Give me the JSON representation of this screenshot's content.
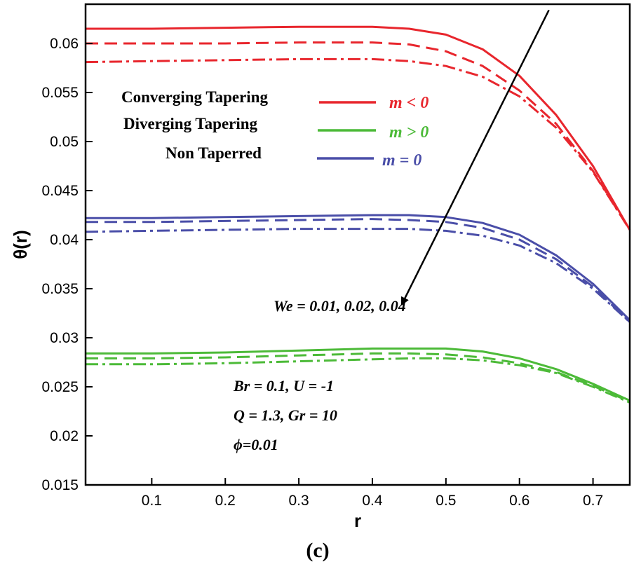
{
  "chart_data": {
    "type": "line",
    "xlabel": "r",
    "ylabel": "θ(r)",
    "xlim": [
      0.01,
      0.75
    ],
    "ylim": [
      0.015,
      0.064
    ],
    "xticks": [
      0.1,
      0.2,
      0.3,
      0.4,
      0.5,
      0.6,
      0.7
    ],
    "xtick_labels": [
      "0.1",
      "0.2",
      "0.3",
      "0.4",
      "0.5",
      "0.6",
      "0.7"
    ],
    "yticks": [
      0.015,
      0.02,
      0.025,
      0.03,
      0.035,
      0.04,
      0.045,
      0.05,
      0.055,
      0.06
    ],
    "ytick_labels": [
      "0.015",
      "0.02",
      "0.025",
      "0.03",
      "0.035",
      "0.04",
      "0.045",
      "0.05",
      "0.055",
      "0.06"
    ],
    "grid": false,
    "legend": {
      "position": "top-left",
      "entries": [
        {
          "label": "Converging Tapering",
          "symbol": "m < 0",
          "color": "#e8262d"
        },
        {
          "label": "Diverging Tapering",
          "symbol": "m > 0",
          "color": "#4cba38"
        },
        {
          "label": "Non Taperred",
          "symbol": "m = 0",
          "color": "#4a4ea8"
        }
      ]
    },
    "colors": {
      "converging": "#e8262d",
      "diverging": "#4cba38",
      "non_tapered": "#4a4ea8"
    },
    "line_styles": [
      "solid",
      "dashed",
      "dashdot"
    ],
    "series": [
      {
        "group": "converging",
        "style": "solid",
        "x": [
          0.01,
          0.1,
          0.2,
          0.3,
          0.4,
          0.45,
          0.5,
          0.55,
          0.6,
          0.65,
          0.7,
          0.75
        ],
        "y": [
          0.0615,
          0.0615,
          0.0616,
          0.0617,
          0.0617,
          0.0615,
          0.0609,
          0.0594,
          0.0567,
          0.0527,
          0.0475,
          0.041
        ]
      },
      {
        "group": "converging",
        "style": "dashed",
        "x": [
          0.01,
          0.1,
          0.2,
          0.3,
          0.4,
          0.45,
          0.5,
          0.55,
          0.6,
          0.65,
          0.7,
          0.75
        ],
        "y": [
          0.06,
          0.06,
          0.06,
          0.0601,
          0.0601,
          0.0599,
          0.0592,
          0.0577,
          0.0552,
          0.0518,
          0.047,
          0.041
        ]
      },
      {
        "group": "converging",
        "style": "dashdot",
        "x": [
          0.01,
          0.1,
          0.2,
          0.3,
          0.4,
          0.45,
          0.5,
          0.55,
          0.6,
          0.65,
          0.7,
          0.75
        ],
        "y": [
          0.0581,
          0.0582,
          0.0583,
          0.0584,
          0.0584,
          0.0582,
          0.0577,
          0.0566,
          0.0546,
          0.0514,
          0.0469,
          0.041
        ]
      },
      {
        "group": "non_tapered",
        "style": "solid",
        "x": [
          0.01,
          0.1,
          0.2,
          0.3,
          0.4,
          0.45,
          0.5,
          0.55,
          0.6,
          0.65,
          0.7,
          0.75
        ],
        "y": [
          0.0422,
          0.0422,
          0.0423,
          0.0424,
          0.0425,
          0.0425,
          0.0423,
          0.0417,
          0.0405,
          0.0384,
          0.0355,
          0.0318
        ]
      },
      {
        "group": "non_tapered",
        "style": "dashed",
        "x": [
          0.01,
          0.1,
          0.2,
          0.3,
          0.4,
          0.45,
          0.5,
          0.55,
          0.6,
          0.65,
          0.7,
          0.75
        ],
        "y": [
          0.0418,
          0.0418,
          0.0419,
          0.042,
          0.0421,
          0.042,
          0.0418,
          0.0412,
          0.04,
          0.038,
          0.0352,
          0.0316
        ]
      },
      {
        "group": "non_tapered",
        "style": "dashdot",
        "x": [
          0.01,
          0.1,
          0.2,
          0.3,
          0.4,
          0.45,
          0.5,
          0.55,
          0.6,
          0.65,
          0.7,
          0.75
        ],
        "y": [
          0.0408,
          0.0409,
          0.041,
          0.0411,
          0.0411,
          0.0411,
          0.0409,
          0.0404,
          0.0394,
          0.0376,
          0.035,
          0.0316
        ]
      },
      {
        "group": "diverging",
        "style": "solid",
        "x": [
          0.01,
          0.1,
          0.2,
          0.3,
          0.4,
          0.45,
          0.5,
          0.55,
          0.6,
          0.65,
          0.7,
          0.75
        ],
        "y": [
          0.0284,
          0.0284,
          0.0285,
          0.0287,
          0.0289,
          0.0289,
          0.0289,
          0.0286,
          0.0279,
          0.0268,
          0.0253,
          0.0236
        ]
      },
      {
        "group": "diverging",
        "style": "dashed",
        "x": [
          0.01,
          0.1,
          0.2,
          0.3,
          0.4,
          0.45,
          0.5,
          0.55,
          0.6,
          0.65,
          0.7,
          0.75
        ],
        "y": [
          0.0279,
          0.0279,
          0.028,
          0.0282,
          0.0284,
          0.0284,
          0.0283,
          0.028,
          0.0274,
          0.0265,
          0.0251,
          0.0235
        ]
      },
      {
        "group": "diverging",
        "style": "dashdot",
        "x": [
          0.01,
          0.1,
          0.2,
          0.3,
          0.4,
          0.45,
          0.5,
          0.55,
          0.6,
          0.65,
          0.7,
          0.75
        ],
        "y": [
          0.0273,
          0.0273,
          0.0274,
          0.0276,
          0.0278,
          0.0279,
          0.0279,
          0.0277,
          0.0272,
          0.0264,
          0.025,
          0.0234
        ]
      }
    ],
    "annotations": {
      "arrow_label": "We = 0.01, 0.02, 0.04",
      "arrow": {
        "from": [
          0.64,
          0.0634
        ],
        "to": [
          0.44,
          0.0334
        ]
      },
      "params": [
        "Br = 0.1,  U = -1",
        "Q = 1.3, Gr = 10",
        "ϕ=0.01"
      ]
    },
    "caption": "(c)"
  }
}
